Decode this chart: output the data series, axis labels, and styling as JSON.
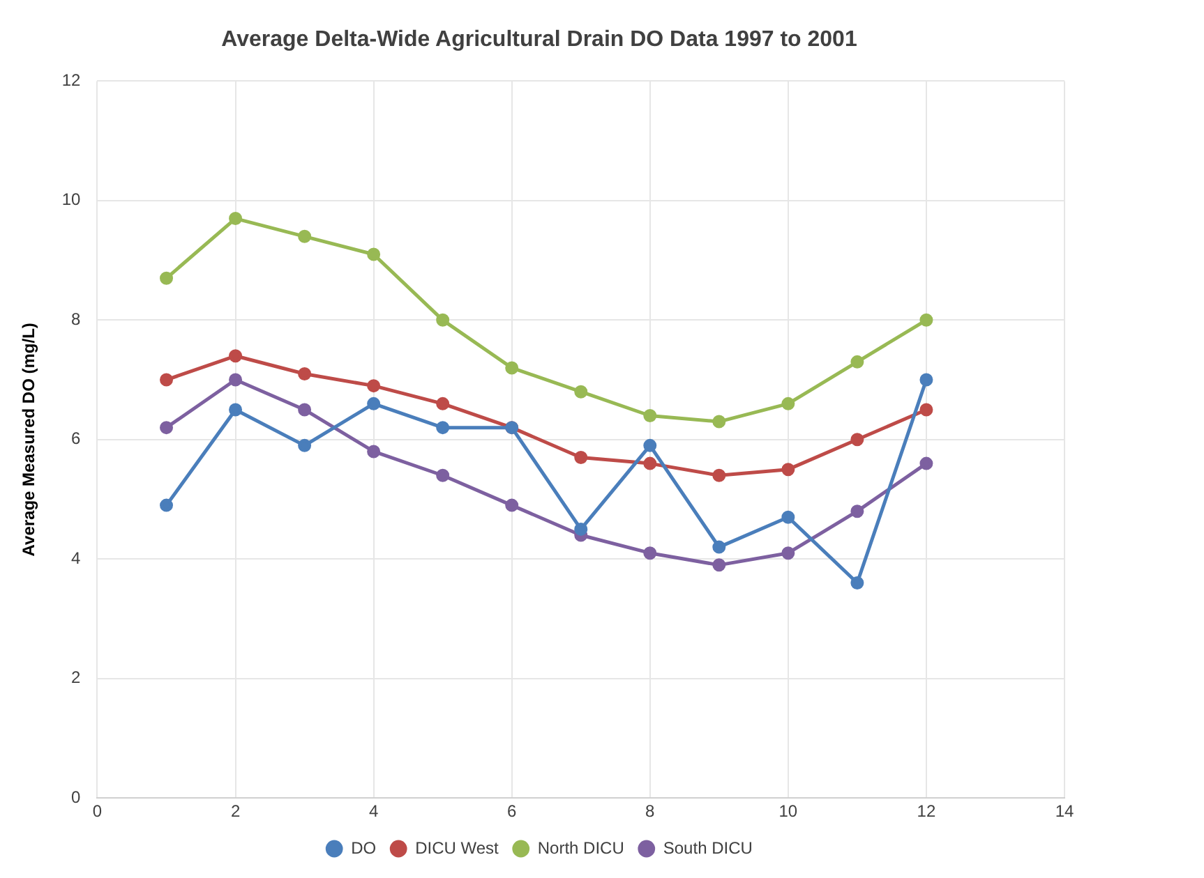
{
  "chart_data": {
    "type": "line",
    "title": "Average Delta-Wide Agricultural Drain DO Data 1997 to 2001",
    "ylabel": "Average Measured DO (mg/L)",
    "x": [
      1,
      2,
      3,
      4,
      5,
      6,
      7,
      8,
      9,
      10,
      11,
      12
    ],
    "series": [
      {
        "name": "DO",
        "color": "#4a7ebb",
        "values": [
          4.9,
          6.5,
          5.9,
          6.6,
          6.2,
          6.2,
          4.5,
          5.9,
          4.2,
          4.7,
          3.6,
          7.0
        ]
      },
      {
        "name": "DICU West",
        "color": "#be4b48",
        "values": [
          7.0,
          7.4,
          7.1,
          6.9,
          6.6,
          6.2,
          5.7,
          5.6,
          5.4,
          5.5,
          6.0,
          6.5
        ]
      },
      {
        "name": "North DICU",
        "color": "#98b954",
        "values": [
          8.7,
          9.7,
          9.4,
          9.1,
          8.0,
          7.2,
          6.8,
          6.4,
          6.3,
          6.6,
          7.3,
          8.0
        ]
      },
      {
        "name": "South DICU",
        "color": "#7d60a0",
        "values": [
          6.2,
          7.0,
          6.5,
          5.8,
          5.4,
          4.9,
          4.4,
          4.1,
          3.9,
          4.1,
          4.8,
          5.6
        ]
      }
    ],
    "xlim": [
      0,
      14
    ],
    "xticks": [
      0,
      2,
      4,
      6,
      8,
      10,
      12,
      14
    ],
    "ylim": [
      0,
      12
    ],
    "yticks": [
      0,
      2,
      4,
      6,
      8,
      10,
      12
    ],
    "grid": true,
    "legend": "bottom",
    "marker": "circle",
    "line_style": "solid"
  }
}
